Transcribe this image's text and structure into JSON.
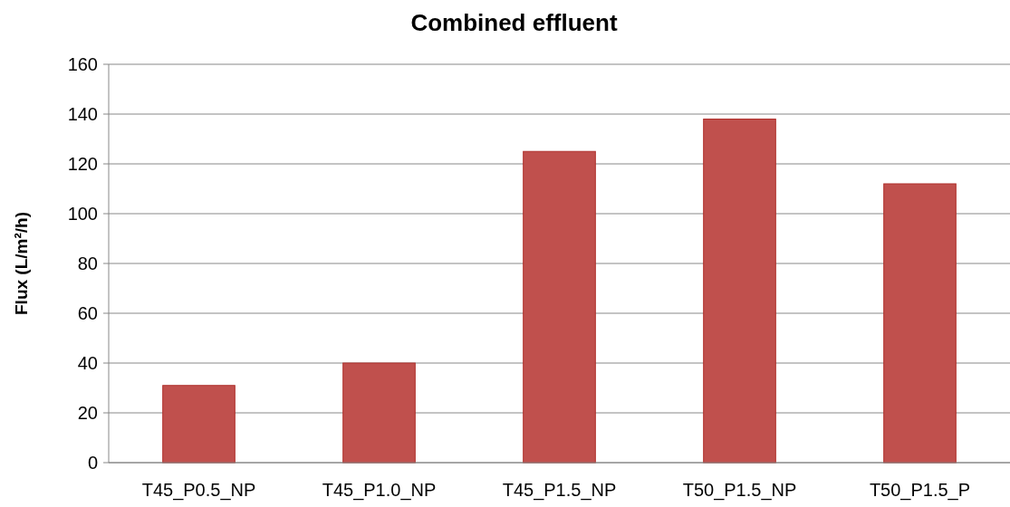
{
  "chart_data": {
    "type": "bar",
    "title": "Combined effluent",
    "ylabel": "Flux (L/m²/h)",
    "categories": [
      "T45_P0.5_NP",
      "T45_P1.0_NP",
      "T45_P1.5_NP",
      "T50_P1.5_NP",
      "T50_P1.5_P"
    ],
    "values": [
      31,
      40,
      125,
      138,
      112
    ],
    "color": "#c0504d",
    "ylim": [
      0,
      160
    ],
    "yticks": [
      0,
      20,
      40,
      60,
      80,
      100,
      120,
      140,
      160
    ],
    "grid": "y"
  }
}
